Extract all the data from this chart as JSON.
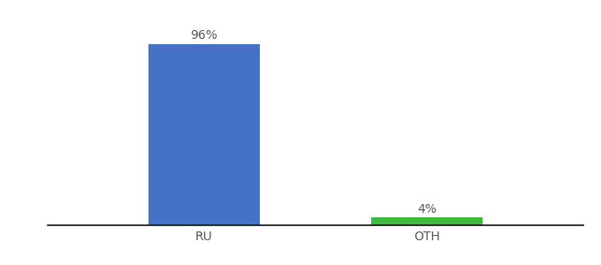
{
  "categories": [
    "RU",
    "OTH"
  ],
  "values": [
    96,
    4
  ],
  "bar_colors": [
    "#4472c4",
    "#3cb843"
  ],
  "label_texts": [
    "96%",
    "4%"
  ],
  "background_color": "#ffffff",
  "ylim": [
    0,
    108
  ],
  "bar_width": 0.5,
  "label_fontsize": 10,
  "tick_fontsize": 10,
  "tick_color": "#555555",
  "label_color": "#555555"
}
